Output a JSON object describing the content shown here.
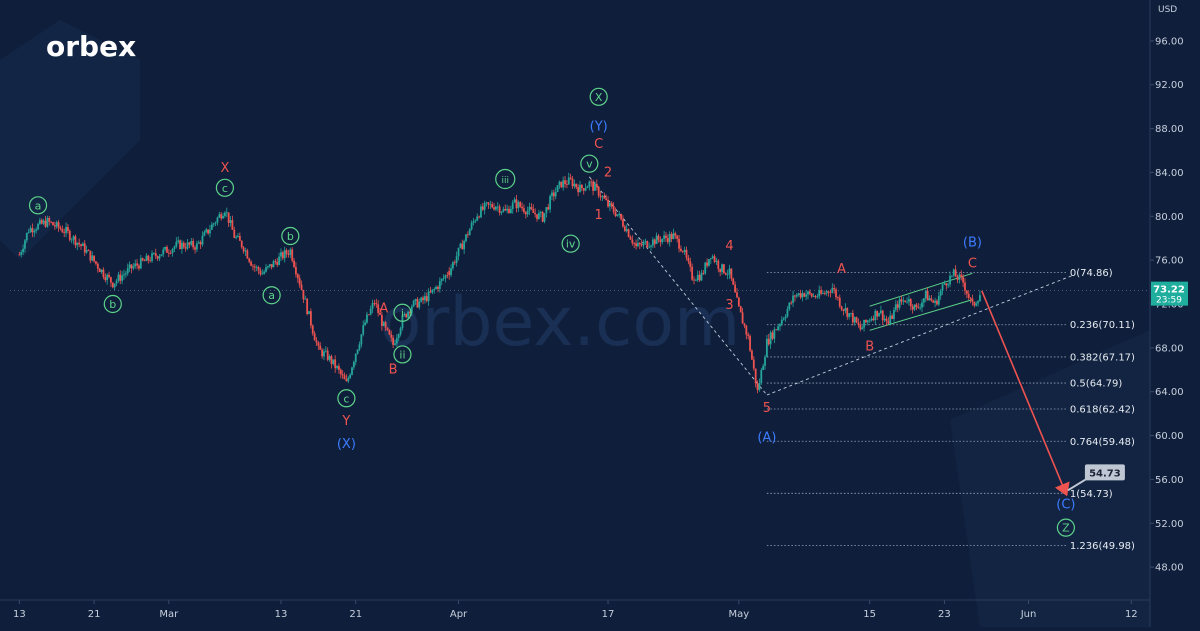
{
  "brand": {
    "name_prefix": "orbe",
    "name_x": "x"
  },
  "watermark": "orbex.com",
  "colors": {
    "background": "#0f1f3b",
    "up_candle": "#26a69a",
    "down_candle": "#ef5350",
    "green_label": "#5dd48a",
    "red_label": "#ef5350",
    "blue_label": "#3d7bff",
    "fib_text": "#e8ecf2",
    "price_badge": "#1fae9e",
    "projection_arrow": "#ef5350"
  },
  "chart_data": {
    "type": "candlestick",
    "currency": "USD",
    "y_axis_title": "USD",
    "ylim": [
      45,
      99
    ],
    "y_ticks": [
      96,
      92,
      88,
      84,
      80,
      76,
      72,
      68,
      64,
      60,
      56,
      52,
      48
    ],
    "y_tick_labels": [
      "96.00",
      "92.00",
      "88.00",
      "84.00",
      "80.00",
      "76.00",
      "72.00",
      "68.00",
      "64.00",
      "60.00",
      "56.00",
      "52.00",
      "48.00"
    ],
    "xlim": [
      "2023-02-12",
      "2023-06-14"
    ],
    "x_ticks": [
      {
        "date": "2023-02-13",
        "label": "13"
      },
      {
        "date": "2023-02-21",
        "label": "21"
      },
      {
        "date": "2023-03-01",
        "label": "Mar"
      },
      {
        "date": "2023-03-13",
        "label": "13"
      },
      {
        "date": "2023-03-21",
        "label": "21"
      },
      {
        "date": "2023-04-01",
        "label": "Apr"
      },
      {
        "date": "2023-04-17",
        "label": "17"
      },
      {
        "date": "2023-05-01",
        "label": "May"
      },
      {
        "date": "2023-05-15",
        "label": "15"
      },
      {
        "date": "2023-05-23",
        "label": "23"
      },
      {
        "date": "2023-06-01",
        "label": "Jun"
      },
      {
        "date": "2023-06-12",
        "label": "12"
      }
    ],
    "price_path": [
      [
        "2023-02-13",
        76.5
      ],
      [
        "2023-02-14",
        78.8
      ],
      [
        "2023-02-16",
        79.5
      ],
      [
        "2023-02-18",
        78.6
      ],
      [
        "2023-02-20",
        77.0
      ],
      [
        "2023-02-22",
        74.8
      ],
      [
        "2023-02-23",
        73.9
      ],
      [
        "2023-02-25",
        75.3
      ],
      [
        "2023-02-28",
        76.6
      ],
      [
        "2023-03-02",
        77.4
      ],
      [
        "2023-03-04",
        77.3
      ],
      [
        "2023-03-06",
        79.6
      ],
      [
        "2023-03-07",
        80.7
      ],
      [
        "2023-03-08",
        78.2
      ],
      [
        "2023-03-09",
        77.2
      ],
      [
        "2023-03-10",
        75.5
      ],
      [
        "2023-03-11",
        74.8
      ],
      [
        "2023-03-13",
        76.3
      ],
      [
        "2023-03-14",
        76.9
      ],
      [
        "2023-03-15",
        74.0
      ],
      [
        "2023-03-16",
        70.9
      ],
      [
        "2023-03-17",
        67.8
      ],
      [
        "2023-03-18",
        67.2
      ],
      [
        "2023-03-19",
        66.1
      ],
      [
        "2023-03-20",
        64.7
      ],
      [
        "2023-03-21",
        67.6
      ],
      [
        "2023-03-22",
        70.3
      ],
      [
        "2023-03-23",
        72.2
      ],
      [
        "2023-03-24",
        69.9
      ],
      [
        "2023-03-25",
        68.3
      ],
      [
        "2023-03-26",
        70.6
      ],
      [
        "2023-03-27",
        71.9
      ],
      [
        "2023-03-28",
        72.2
      ],
      [
        "2023-03-29",
        72.9
      ],
      [
        "2023-03-30",
        73.9
      ],
      [
        "2023-03-31",
        75.0
      ],
      [
        "2023-04-03",
        80.2
      ],
      [
        "2023-04-04",
        80.9
      ],
      [
        "2023-04-05",
        81.0
      ],
      [
        "2023-04-06",
        80.4
      ],
      [
        "2023-04-07",
        81.2
      ],
      [
        "2023-04-08",
        80.7
      ],
      [
        "2023-04-10",
        79.9
      ],
      [
        "2023-04-11",
        81.8
      ],
      [
        "2023-04-12",
        83.0
      ],
      [
        "2023-04-13",
        83.2
      ],
      [
        "2023-04-14",
        82.5
      ],
      [
        "2023-04-15",
        83.0
      ],
      [
        "2023-04-16",
        82.2
      ],
      [
        "2023-04-17",
        81.0
      ],
      [
        "2023-04-18",
        80.2
      ],
      [
        "2023-04-19",
        78.8
      ],
      [
        "2023-04-20",
        77.2
      ],
      [
        "2023-04-22",
        77.8
      ],
      [
        "2023-04-24",
        78.2
      ],
      [
        "2023-04-25",
        77.0
      ],
      [
        "2023-04-26",
        74.5
      ],
      [
        "2023-04-27",
        74.6
      ],
      [
        "2023-04-28",
        76.6
      ],
      [
        "2023-04-29",
        75.3
      ],
      [
        "2023-04-30",
        74.8
      ],
      [
        "2023-05-01",
        71.5
      ],
      [
        "2023-05-02",
        68.9
      ],
      [
        "2023-05-03",
        64.0
      ],
      [
        "2023-05-04",
        68.5
      ],
      [
        "2023-05-05",
        69.8
      ],
      [
        "2023-05-06",
        71.2
      ],
      [
        "2023-05-07",
        72.8
      ],
      [
        "2023-05-08",
        73.0
      ],
      [
        "2023-05-09",
        72.7
      ],
      [
        "2023-05-10",
        72.9
      ],
      [
        "2023-05-11",
        73.5
      ],
      [
        "2023-05-12",
        71.8
      ],
      [
        "2023-05-13",
        70.9
      ],
      [
        "2023-05-14",
        69.7
      ],
      [
        "2023-05-15",
        70.7
      ],
      [
        "2023-05-16",
        71.4
      ],
      [
        "2023-05-17",
        70.2
      ],
      [
        "2023-05-18",
        72.0
      ],
      [
        "2023-05-19",
        72.5
      ],
      [
        "2023-05-20",
        71.5
      ],
      [
        "2023-05-21",
        72.8
      ],
      [
        "2023-05-22",
        72.0
      ],
      [
        "2023-05-23",
        73.9
      ],
      [
        "2023-05-24",
        74.7
      ],
      [
        "2023-05-25",
        74.0
      ],
      [
        "2023-05-26",
        71.8
      ],
      [
        "2023-05-27",
        73.2
      ]
    ],
    "current_price": {
      "value": 73.22,
      "label": "73.22",
      "countdown": "23:59"
    },
    "fibonacci_levels": [
      {
        "level": "0",
        "price": 74.86,
        "label": "0(74.86)"
      },
      {
        "level": "0.236",
        "price": 70.11,
        "label": "0.236(70.11)"
      },
      {
        "level": "0.382",
        "price": 67.17,
        "label": "0.382(67.17)"
      },
      {
        "level": "0.5",
        "price": 64.79,
        "label": "0.5(64.79)"
      },
      {
        "level": "0.618",
        "price": 62.42,
        "label": "0.618(62.42)"
      },
      {
        "level": "0.764",
        "price": 59.48,
        "label": "0.764(59.48)"
      },
      {
        "level": "1",
        "price": 54.73,
        "label": "1(54.73)"
      },
      {
        "level": "1.236",
        "price": 49.98,
        "label": "1.236(49.98)"
      }
    ],
    "fib_start_date": "2023-05-04",
    "fib_end_date": "2023-06-05",
    "wave_labels": [
      {
        "text": "a",
        "date": "2023-02-15",
        "price": 81.0,
        "color": "green",
        "circled": true
      },
      {
        "text": "b",
        "date": "2023-02-23",
        "price": 72.0,
        "color": "green",
        "circled": true
      },
      {
        "text": "X",
        "date": "2023-03-07",
        "price": 84.5,
        "color": "red",
        "circled": false
      },
      {
        "text": "c",
        "date": "2023-03-07",
        "price": 82.6,
        "color": "green",
        "circled": true
      },
      {
        "text": "b",
        "date": "2023-03-14",
        "price": 78.2,
        "color": "green",
        "circled": true
      },
      {
        "text": "a",
        "date": "2023-03-12",
        "price": 72.8,
        "color": "green",
        "circled": true
      },
      {
        "text": "c",
        "date": "2023-03-20",
        "price": 63.4,
        "color": "green",
        "circled": true
      },
      {
        "text": "Y",
        "date": "2023-03-20",
        "price": 61.4,
        "color": "red",
        "circled": false
      },
      {
        "text": "(X)",
        "date": "2023-03-20",
        "price": 59.3,
        "color": "blue",
        "circled": false
      },
      {
        "text": "A",
        "date": "2023-03-24",
        "price": 71.7,
        "color": "red",
        "circled": false
      },
      {
        "text": "i",
        "date": "2023-03-26",
        "price": 71.2,
        "color": "green",
        "circled": true
      },
      {
        "text": "ii",
        "date": "2023-03-26",
        "price": 67.4,
        "color": "green",
        "circled": true
      },
      {
        "text": "B",
        "date": "2023-03-25",
        "price": 66.1,
        "color": "red",
        "circled": false
      },
      {
        "text": "iii",
        "date": "2023-04-06",
        "price": 83.4,
        "color": "green",
        "circled": true
      },
      {
        "text": "iv",
        "date": "2023-04-13",
        "price": 77.5,
        "color": "green",
        "circled": true
      },
      {
        "text": "v",
        "date": "2023-04-15",
        "price": 84.8,
        "color": "green",
        "circled": true
      },
      {
        "text": "X",
        "date": "2023-04-16",
        "price": 90.9,
        "color": "green",
        "circled": true
      },
      {
        "text": "(Y)",
        "date": "2023-04-16",
        "price": 88.3,
        "color": "blue",
        "circled": false
      },
      {
        "text": "C",
        "date": "2023-04-16",
        "price": 86.7,
        "color": "red",
        "circled": false
      },
      {
        "text": "2",
        "date": "2023-04-17",
        "price": 84.1,
        "color": "red",
        "circled": false
      },
      {
        "text": "1",
        "date": "2023-04-16",
        "price": 80.2,
        "color": "red",
        "circled": false
      },
      {
        "text": "4",
        "date": "2023-04-30",
        "price": 77.4,
        "color": "red",
        "circled": false
      },
      {
        "text": "3",
        "date": "2023-04-30",
        "price": 72.0,
        "color": "red",
        "circled": false
      },
      {
        "text": "5",
        "date": "2023-05-04",
        "price": 62.6,
        "color": "red",
        "circled": false
      },
      {
        "text": "(A)",
        "date": "2023-05-04",
        "price": 59.9,
        "color": "blue",
        "circled": false
      },
      {
        "text": "A",
        "date": "2023-05-12",
        "price": 75.3,
        "color": "red",
        "circled": false
      },
      {
        "text": "B",
        "date": "2023-05-15",
        "price": 68.2,
        "color": "red",
        "circled": false
      },
      {
        "text": "(B)",
        "date": "2023-05-26",
        "price": 77.7,
        "color": "blue",
        "circled": false
      },
      {
        "text": "C",
        "date": "2023-05-26",
        "price": 75.8,
        "color": "red",
        "circled": false
      },
      {
        "text": "(C)",
        "date": "2023-06-05",
        "price": 53.8,
        "color": "blue",
        "circled": false
      },
      {
        "text": "Z",
        "date": "2023-06-05",
        "price": 51.6,
        "color": "green",
        "circled": true
      }
    ],
    "trendlines": [
      {
        "kind": "dashed",
        "from": [
          "2023-04-15",
          83.6
        ],
        "to": [
          "2023-05-04",
          63.7
        ]
      },
      {
        "kind": "dashed",
        "from": [
          "2023-05-04",
          63.7
        ],
        "to": [
          "2023-06-06",
          74.7
        ]
      },
      {
        "kind": "channel",
        "from": [
          "2023-05-15",
          71.8
        ],
        "to": [
          "2023-05-26",
          74.8
        ]
      },
      {
        "kind": "channel",
        "from": [
          "2023-05-15",
          69.6
        ],
        "to": [
          "2023-05-26",
          72.4
        ]
      }
    ],
    "projection": {
      "from": [
        "2023-05-27",
        73.2
      ],
      "to": [
        "2023-06-05",
        54.73
      ],
      "target_label": "54.73"
    }
  }
}
